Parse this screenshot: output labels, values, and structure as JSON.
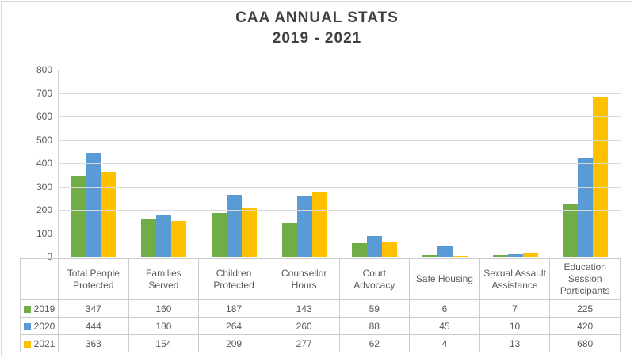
{
  "title": {
    "line1": "CAA ANNUAL STATS",
    "line2": "2019 - 2021"
  },
  "chart_data": {
    "type": "bar",
    "title": "CAA ANNUAL STATS 2019 - 2021",
    "categories": [
      "Total People Protected",
      "Families Served",
      "Children Protected",
      "Counsellor Hours",
      "Court Advocacy",
      "Safe Housing",
      "Sexual Assault Assistance",
      "Education Session Participants"
    ],
    "series": [
      {
        "name": "2019",
        "color": "#70AD47",
        "values": [
          347,
          160,
          187,
          143,
          59,
          6,
          7,
          225
        ]
      },
      {
        "name": "2020",
        "color": "#5B9BD5",
        "values": [
          444,
          180,
          264,
          260,
          88,
          45,
          10,
          420
        ]
      },
      {
        "name": "2021",
        "color": "#FFC000",
        "values": [
          363,
          154,
          209,
          277,
          62,
          4,
          13,
          680
        ]
      }
    ],
    "xlabel": "",
    "ylabel": "",
    "ylim": [
      0,
      800
    ],
    "yticks": [
      0,
      100,
      200,
      300,
      400,
      500,
      600,
      700,
      800
    ],
    "grid": true,
    "legend_position": "data-table-left"
  },
  "style": {
    "grid_color": "#D9D9D9",
    "axis_color": "#C9C9C9",
    "text_color": "#595959",
    "title_color": "#404040",
    "table_border_color": "#CCCCCC"
  }
}
